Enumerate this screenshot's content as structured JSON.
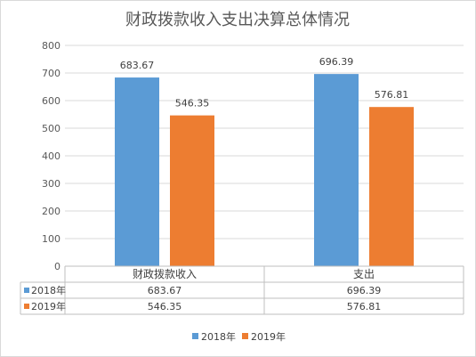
{
  "chart_data": {
    "type": "bar",
    "title": "财政拨款收入支出决算总体情况",
    "categories": [
      "财政拨款收入",
      "支出"
    ],
    "series": [
      {
        "name": "2018年",
        "values": [
          683.67,
          696.39
        ],
        "labels": [
          "683.67",
          "696.39"
        ],
        "color": "#5b9bd5"
      },
      {
        "name": "2019年",
        "values": [
          546.35,
          576.81
        ],
        "labels": [
          "546.35",
          "576.81"
        ],
        "color": "#ed7d31"
      }
    ],
    "ylim": [
      0,
      800
    ],
    "yticks": [
      0,
      100,
      200,
      300,
      400,
      500,
      600,
      700,
      800
    ],
    "grid": true,
    "data_table": true,
    "legend_position": "bottom"
  }
}
